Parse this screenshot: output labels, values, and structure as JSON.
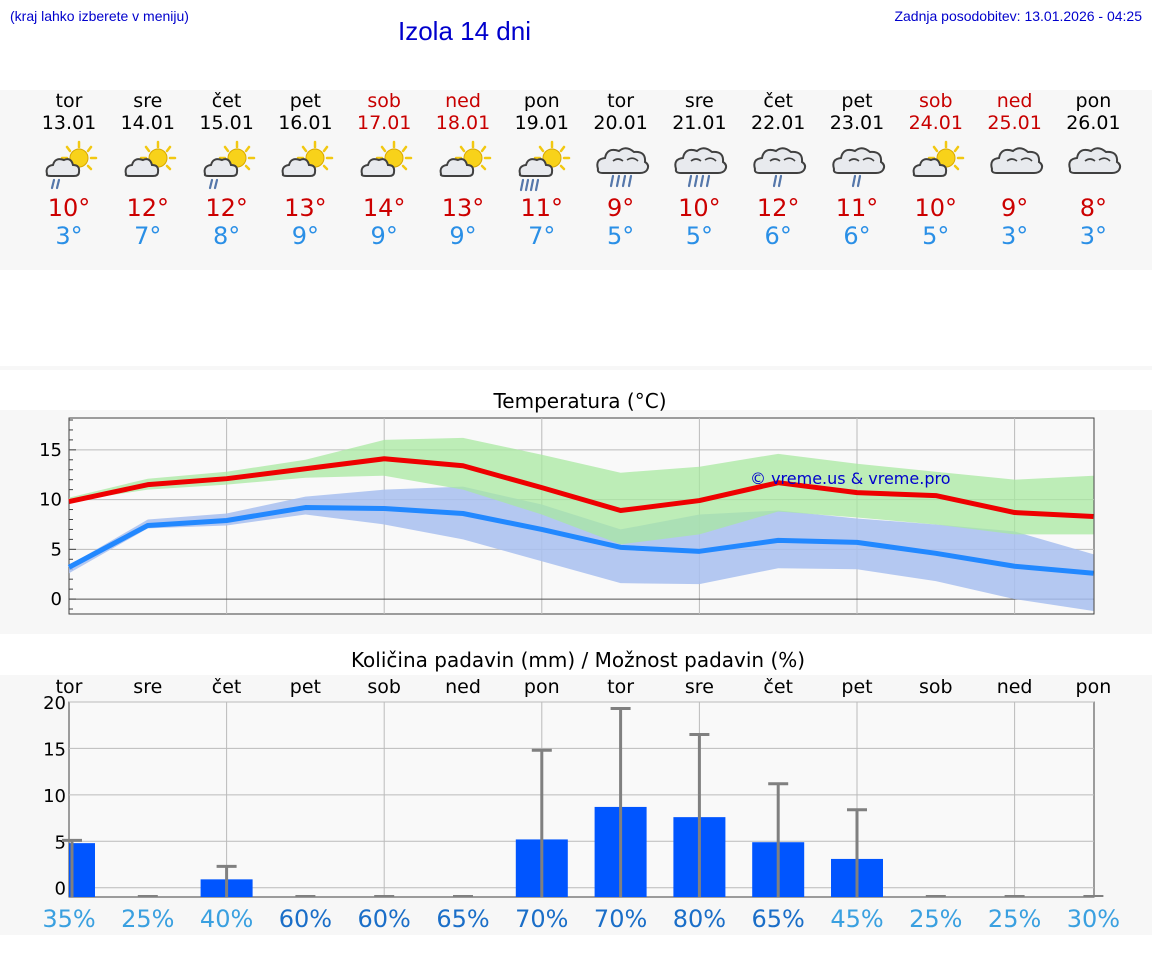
{
  "header": {
    "hint": "(kraj lahko izberete v meniju)",
    "title": "Izola 14 dni",
    "updated": "Zadnja posodobitev: 13.01.2026 - 04:25"
  },
  "days": [
    {
      "name": "tor",
      "date": "13.01",
      "weekend": false,
      "icon": "sun-cloud-drizzle-icon",
      "tmax": "10°",
      "tmin": "3°"
    },
    {
      "name": "sre",
      "date": "14.01",
      "weekend": false,
      "icon": "sun-cloud-icon",
      "tmax": "12°",
      "tmin": "7°"
    },
    {
      "name": "čet",
      "date": "15.01",
      "weekend": false,
      "icon": "sun-cloud-drizzle-icon",
      "tmax": "12°",
      "tmin": "8°"
    },
    {
      "name": "pet",
      "date": "16.01",
      "weekend": false,
      "icon": "sun-cloud-icon",
      "tmax": "13°",
      "tmin": "9°"
    },
    {
      "name": "sob",
      "date": "17.01",
      "weekend": true,
      "icon": "sun-cloud-icon",
      "tmax": "14°",
      "tmin": "9°"
    },
    {
      "name": "ned",
      "date": "18.01",
      "weekend": true,
      "icon": "sun-cloud-icon",
      "tmax": "13°",
      "tmin": "9°"
    },
    {
      "name": "pon",
      "date": "19.01",
      "weekend": false,
      "icon": "sun-cloud-rain-icon",
      "tmax": "11°",
      "tmin": "7°"
    },
    {
      "name": "tor",
      "date": "20.01",
      "weekend": false,
      "icon": "cloud-heavy-rain-icon",
      "tmax": "9°",
      "tmin": "5°"
    },
    {
      "name": "sre",
      "date": "21.01",
      "weekend": false,
      "icon": "cloud-heavy-rain-icon",
      "tmax": "10°",
      "tmin": "5°"
    },
    {
      "name": "čet",
      "date": "22.01",
      "weekend": false,
      "icon": "cloud-drizzle-icon",
      "tmax": "12°",
      "tmin": "6°"
    },
    {
      "name": "pet",
      "date": "23.01",
      "weekend": false,
      "icon": "cloud-drizzle-icon",
      "tmax": "11°",
      "tmin": "6°"
    },
    {
      "name": "sob",
      "date": "24.01",
      "weekend": true,
      "icon": "sun-cloud-icon",
      "tmax": "10°",
      "tmin": "5°"
    },
    {
      "name": "ned",
      "date": "25.01",
      "weekend": true,
      "icon": "cloud-icon",
      "tmax": "9°",
      "tmin": "3°"
    },
    {
      "name": "pon",
      "date": "26.01",
      "weekend": false,
      "icon": "cloud-icon",
      "tmax": "8°",
      "tmin": "3°"
    }
  ],
  "colors": {
    "max_line": "#ee0000",
    "min_line": "#2288ff",
    "max_band": "#a8e8a0",
    "min_band": "#a8c0f0",
    "bar": "#0055ff",
    "whisker": "#808080",
    "prob_high": "#1a6ec8",
    "prob_low": "#3aa0e0"
  },
  "chart_data": [
    {
      "type": "line",
      "title": "Temperatura (°C)",
      "watermark": "© vreme.us & vreme.pro",
      "ylim": [
        -1.5,
        18.2
      ],
      "yticks": [
        0,
        5,
        10,
        15
      ],
      "x": [
        0,
        1,
        2,
        3,
        4,
        5,
        6,
        7,
        8,
        9,
        10,
        11,
        12,
        13
      ],
      "series": [
        {
          "name": "max",
          "values": [
            9.8,
            11.5,
            12.1,
            13.1,
            14.1,
            13.4,
            11.2,
            8.9,
            9.9,
            11.7,
            10.7,
            10.4,
            8.7,
            8.3
          ],
          "band_low": [
            9.8,
            11.0,
            11.5,
            12.2,
            12.4,
            11.0,
            8.5,
            5.5,
            6.5,
            8.8,
            8.2,
            7.5,
            6.5,
            6.5
          ],
          "band_high": [
            10.2,
            12.1,
            12.8,
            14.0,
            16.0,
            16.2,
            14.5,
            12.7,
            13.3,
            14.6,
            13.6,
            12.8,
            12.0,
            12.4
          ]
        },
        {
          "name": "min",
          "values": [
            3.2,
            7.4,
            7.9,
            9.2,
            9.1,
            8.6,
            7.0,
            5.2,
            4.8,
            5.9,
            5.7,
            4.6,
            3.3,
            2.6
          ],
          "band_low": [
            2.6,
            7.1,
            7.4,
            8.5,
            7.5,
            6.0,
            3.8,
            1.6,
            1.5,
            3.1,
            3.0,
            1.8,
            0.0,
            -1.2
          ],
          "band_high": [
            3.4,
            8.0,
            8.6,
            10.3,
            11.0,
            11.3,
            9.5,
            7.0,
            8.5,
            8.9,
            8.1,
            7.5,
            6.8,
            4.5
          ]
        }
      ]
    },
    {
      "type": "bar",
      "title": "Količina padavin (mm) / Možnost padavin (%)",
      "categories": [
        "tor",
        "sre",
        "čet",
        "pet",
        "sob",
        "ned",
        "pon",
        "tor",
        "sre",
        "čet",
        "pet",
        "sob",
        "ned",
        "pon"
      ],
      "ylim": [
        -1,
        20
      ],
      "yticks": [
        0,
        5,
        10,
        15,
        20
      ],
      "values": [
        4.8,
        0,
        0.9,
        0,
        0,
        0,
        5.2,
        8.7,
        7.6,
        4.9,
        3.1,
        0,
        0,
        0
      ],
      "error_high": [
        5.1,
        0,
        2.3,
        0,
        0,
        0,
        14.8,
        19.3,
        16.5,
        11.2,
        8.4,
        0,
        0,
        0
      ],
      "probability": [
        "35%",
        "25%",
        "40%",
        "60%",
        "60%",
        "65%",
        "70%",
        "70%",
        "80%",
        "65%",
        "45%",
        "25%",
        "25%",
        "30%"
      ]
    }
  ]
}
